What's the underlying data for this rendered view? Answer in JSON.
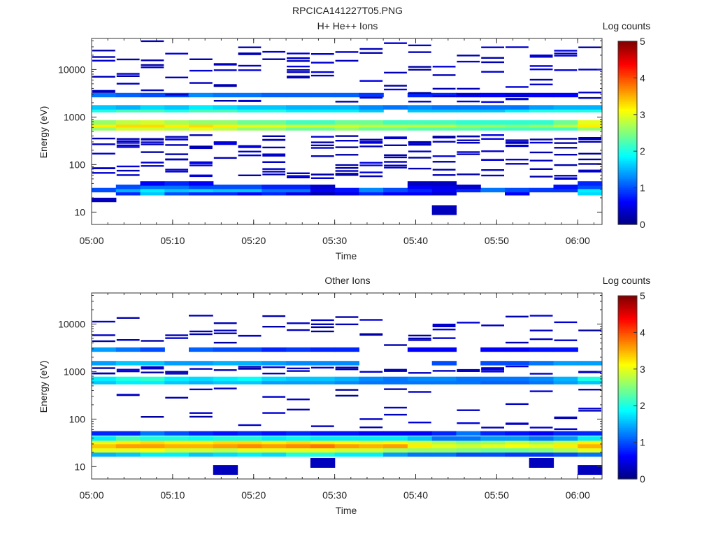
{
  "figure": {
    "title": "RPCICA141227T05.PNG"
  },
  "colorbar": {
    "label": "Log counts",
    "ticks": [
      "0",
      "1",
      "2",
      "3",
      "4",
      "5"
    ],
    "range": [
      0,
      5
    ],
    "colormap": "jet"
  },
  "chart_data": [
    {
      "type": "heatmap",
      "title": "H+ He++ Ions",
      "xlabel": "Time",
      "ylabel": "Energy (eV)",
      "x_ticks": [
        "05:00",
        "05:10",
        "05:20",
        "05:30",
        "05:40",
        "05:50",
        "06:00"
      ],
      "xlim": [
        "05:00",
        "06:03"
      ],
      "y_scale": "log",
      "ylim": [
        5.5,
        45000
      ],
      "y_ticks": [
        "10",
        "100",
        "1000",
        "10000"
      ],
      "time_bins": [
        "05:00",
        "05:03",
        "05:06",
        "05:09",
        "05:12",
        "05:15",
        "05:18",
        "05:21",
        "05:24",
        "05:27",
        "05:30",
        "05:33",
        "05:36",
        "05:39",
        "05:42",
        "05:45",
        "05:48",
        "05:51",
        "05:54",
        "05:57",
        "06:00"
      ],
      "bands": [
        {
          "energy_eV": 18,
          "values": [
            0.3,
            null,
            null,
            null,
            null,
            null,
            null,
            null,
            null,
            null,
            null,
            null,
            null,
            null,
            null,
            null,
            null,
            null,
            null,
            null,
            null
          ]
        },
        {
          "energy_eV": 11,
          "values": [
            null,
            null,
            null,
            null,
            null,
            null,
            null,
            null,
            null,
            null,
            null,
            null,
            null,
            null,
            0.3,
            null,
            null,
            null,
            null,
            null,
            null
          ]
        },
        {
          "energy_eV": 25,
          "values": [
            null,
            0.8,
            1.6,
            1.0,
            0.8,
            0.8,
            0.6,
            0.8,
            0.5,
            0.2,
            0.5,
            0.8,
            0.6,
            0.6,
            0.4,
            null,
            null,
            0.6,
            null,
            null,
            1.7
          ]
        },
        {
          "energy_eV": 29,
          "values": [
            1.0,
            1.5,
            1.8,
            1.6,
            1.7,
            1.6,
            1.6,
            1.2,
            1.2,
            0.6,
            0.7,
            1.3,
            1.0,
            0.8,
            0.6,
            0.8,
            1.2,
            1.0,
            0.9,
            0.9,
            1.8
          ]
        },
        {
          "energy_eV": 34,
          "values": [
            null,
            1.0,
            1.2,
            1.2,
            1.0,
            1.0,
            1.0,
            0.8,
            0.8,
            0.4,
            null,
            null,
            null,
            0.6,
            0.5,
            0.4,
            null,
            null,
            null,
            0.7,
            1.0
          ]
        },
        {
          "energy_eV": 40,
          "values": [
            null,
            null,
            0.6,
            0.8,
            0.6,
            null,
            null,
            null,
            null,
            null,
            null,
            null,
            null,
            0.3,
            0.3,
            null,
            null,
            null,
            null,
            null,
            0.8
          ]
        },
        {
          "energy_eV": 580,
          "values": [
            2.6,
            2.9,
            2.9,
            2.8,
            3.0,
            2.8,
            2.6,
            2.6,
            2.4,
            2.4,
            2.6,
            2.4,
            2.4,
            2.3,
            2.3,
            2.3,
            2.2,
            2.2,
            2.2,
            2.2,
            2.6
          ]
        },
        {
          "energy_eV": 670,
          "values": [
            3.2,
            3.3,
            3.3,
            3.2,
            3.3,
            3.2,
            3.0,
            3.0,
            2.9,
            2.9,
            2.9,
            2.8,
            2.8,
            2.8,
            2.8,
            2.6,
            2.6,
            2.5,
            2.6,
            2.8,
            3.2
          ]
        },
        {
          "energy_eV": 770,
          "values": [
            2.6,
            2.8,
            2.9,
            2.7,
            2.6,
            2.6,
            2.4,
            2.4,
            2.2,
            2.2,
            2.4,
            2.4,
            2.2,
            2.2,
            2.2,
            2.1,
            2.1,
            2.1,
            2.1,
            2.4,
            3.0
          ]
        },
        {
          "energy_eV": 1400,
          "values": [
            2.0,
            2.2,
            2.2,
            2.0,
            2.2,
            2.2,
            2.0,
            2.0,
            1.8,
            1.8,
            1.8,
            1.6,
            null,
            1.6,
            1.6,
            1.6,
            1.6,
            1.8,
            2.0,
            2.0,
            2.0
          ]
        },
        {
          "energy_eV": 1600,
          "values": [
            1.6,
            1.5,
            1.7,
            1.6,
            1.8,
            1.7,
            1.6,
            1.6,
            1.5,
            1.5,
            1.5,
            1.3,
            1.2,
            1.3,
            1.2,
            1.2,
            1.2,
            1.2,
            1.4,
            1.5,
            1.5
          ]
        },
        {
          "energy_eV": 2900,
          "values": [
            1.2,
            1.1,
            1.0,
            1.0,
            1.3,
            1.2,
            1.2,
            1.1,
            1.1,
            1.1,
            1.1,
            0.9,
            null,
            0.8,
            0.8,
            0.6,
            0.6,
            0.5,
            0.6,
            0.6,
            null
          ]
        }
      ],
      "sparse_counts": "scattered low-count bins (~0.3 log counts) between 50 eV and 40000 eV"
    },
    {
      "type": "heatmap",
      "title": "Other Ions",
      "xlabel": "Time",
      "ylabel": "Energy (eV)",
      "x_ticks": [
        "05:00",
        "05:10",
        "05:20",
        "05:30",
        "05:40",
        "05:50",
        "06:00"
      ],
      "xlim": [
        "05:00",
        "06:03"
      ],
      "y_scale": "log",
      "ylim": [
        5.5,
        45000
      ],
      "y_ticks": [
        "10",
        "100",
        "1000",
        "10000"
      ],
      "time_bins": [
        "05:00",
        "05:03",
        "05:06",
        "05:09",
        "05:12",
        "05:15",
        "05:18",
        "05:21",
        "05:24",
        "05:27",
        "05:30",
        "05:33",
        "05:36",
        "05:39",
        "05:42",
        "05:45",
        "05:48",
        "05:51",
        "05:54",
        "05:57",
        "06:00"
      ],
      "bands": [
        {
          "energy_eV": 8.5,
          "values": [
            null,
            null,
            null,
            null,
            null,
            0.3,
            null,
            null,
            null,
            null,
            null,
            null,
            null,
            null,
            null,
            null,
            null,
            null,
            null,
            null,
            0.3
          ]
        },
        {
          "energy_eV": 12,
          "values": [
            null,
            null,
            null,
            null,
            null,
            null,
            null,
            null,
            null,
            0.3,
            null,
            null,
            null,
            null,
            null,
            null,
            null,
            null,
            0.3,
            null,
            null
          ]
        },
        {
          "energy_eV": 18,
          "values": [
            1.5,
            1.6,
            1.8,
            1.8,
            1.6,
            1.7,
            1.8,
            1.7,
            2.0,
            2.0,
            1.8,
            1.8,
            1.4,
            1.2,
            1.2,
            1.0,
            1.0,
            0.9,
            0.9,
            1.0,
            1.2
          ]
        },
        {
          "energy_eV": 22,
          "values": [
            3.0,
            3.0,
            3.1,
            2.9,
            2.9,
            2.8,
            3.0,
            3.0,
            3.0,
            3.0,
            2.9,
            2.9,
            2.7,
            2.6,
            2.6,
            2.5,
            2.4,
            2.4,
            2.5,
            2.7,
            3.0
          ]
        },
        {
          "energy_eV": 27,
          "values": [
            3.4,
            3.6,
            3.6,
            3.5,
            3.5,
            3.6,
            3.7,
            3.6,
            3.7,
            3.8,
            3.6,
            3.5,
            3.6,
            3.2,
            3.0,
            2.9,
            3.0,
            3.1,
            3.0,
            3.2,
            3.5
          ]
        },
        {
          "energy_eV": 33,
          "values": [
            3.0,
            3.2,
            3.3,
            3.2,
            3.2,
            3.3,
            3.3,
            3.2,
            3.3,
            3.2,
            3.1,
            3.0,
            3.1,
            2.9,
            2.7,
            2.5,
            2.6,
            2.8,
            2.6,
            2.8,
            3.2
          ]
        },
        {
          "energy_eV": 39,
          "values": [
            1.8,
            2.2,
            2.0,
            2.0,
            1.9,
            2.0,
            2.0,
            1.8,
            1.9,
            1.8,
            1.8,
            1.8,
            1.8,
            1.6,
            1.2,
            1.2,
            1.4,
            1.4,
            1.2,
            1.4,
            1.8
          ]
        },
        {
          "energy_eV": 50,
          "values": [
            0.8,
            0.8,
            1.2,
            1.0,
            0.8,
            0.7,
            0.8,
            0.7,
            0.8,
            0.7,
            0.7,
            0.6,
            0.6,
            0.6,
            0.8,
            1.2,
            0.8,
            0.7,
            0.6,
            0.8,
            0.8
          ]
        },
        {
          "energy_eV": 600,
          "values": [
            1.6,
            1.8,
            1.8,
            1.6,
            1.5,
            1.6,
            1.6,
            1.4,
            1.4,
            1.4,
            1.3,
            1.2,
            1.2,
            1.2,
            1.2,
            1.2,
            1.1,
            1.1,
            1.2,
            1.4,
            1.6
          ]
        },
        {
          "energy_eV": 700,
          "values": [
            1.8,
            2.0,
            2.1,
            1.8,
            1.7,
            1.8,
            1.9,
            1.7,
            1.6,
            1.6,
            1.5,
            1.3,
            1.2,
            1.3,
            1.3,
            1.2,
            1.2,
            1.2,
            1.3,
            1.5,
            2.0
          ]
        },
        {
          "energy_eV": 1500,
          "values": [
            1.4,
            1.6,
            1.6,
            1.4,
            1.4,
            1.5,
            1.5,
            1.4,
            1.3,
            1.3,
            1.3,
            null,
            null,
            null,
            1.0,
            null,
            1.0,
            1.0,
            1.2,
            1.4,
            1.4
          ]
        },
        {
          "energy_eV": 2900,
          "values": [
            1.4,
            1.2,
            1.0,
            null,
            1.1,
            1.0,
            1.0,
            0.8,
            0.9,
            0.8,
            0.8,
            null,
            null,
            0.6,
            0.6,
            null,
            0.6,
            0.6,
            0.7,
            0.7,
            null
          ]
        }
      ],
      "sparse_counts": "scattered low-count bins (~0.3 log counts) between 60 eV and 15000 eV"
    }
  ]
}
